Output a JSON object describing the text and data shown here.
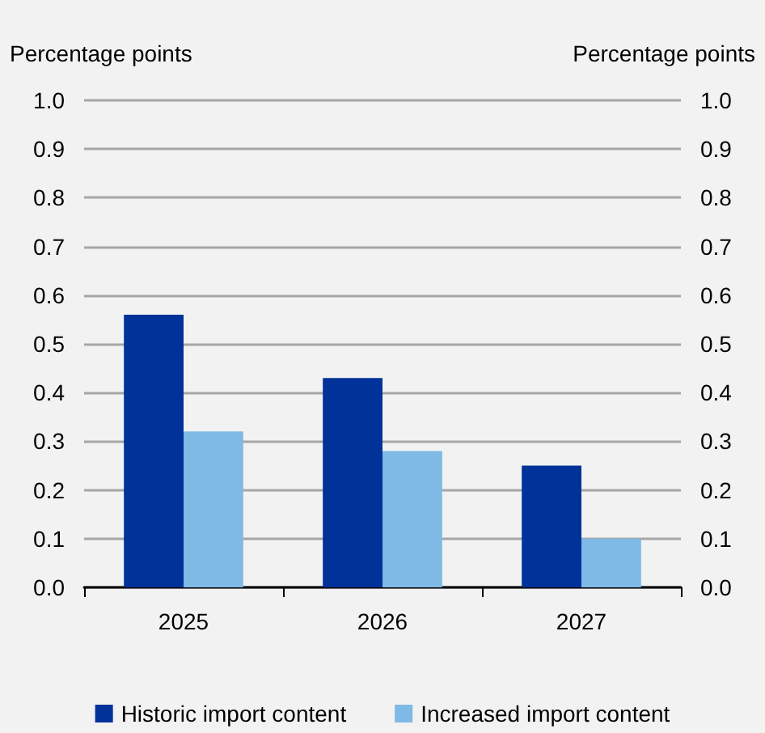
{
  "chart_data": {
    "type": "bar",
    "ylabel": "Percentage points",
    "y2label": "Percentage points",
    "categories": [
      "2025",
      "2026",
      "2027"
    ],
    "series": [
      {
        "name": "Historic import content",
        "color": "#003299",
        "values": [
          0.56,
          0.43,
          0.25
        ]
      },
      {
        "name": "Increased import content",
        "color": "#7fb9e5",
        "values": [
          0.32,
          0.28,
          0.1
        ]
      }
    ],
    "ylim": [
      0,
      1
    ],
    "yticks": [
      {
        "value": 0,
        "label": "0.0"
      },
      0.1,
      0.2,
      0.3,
      0.4,
      0.5,
      0.6,
      0.7,
      0.8,
      0.9,
      {
        "value": 1,
        "label": "1.0"
      }
    ],
    "y2lim": [
      0,
      1
    ],
    "y2ticks": [
      {
        "value": 0,
        "label": "0.0"
      },
      0.1,
      0.2,
      0.3,
      0.4,
      0.5,
      0.6,
      0.7,
      0.8,
      0.9,
      {
        "value": 1,
        "label": "1.0"
      }
    ],
    "grid": "y",
    "legend": "bottom"
  }
}
